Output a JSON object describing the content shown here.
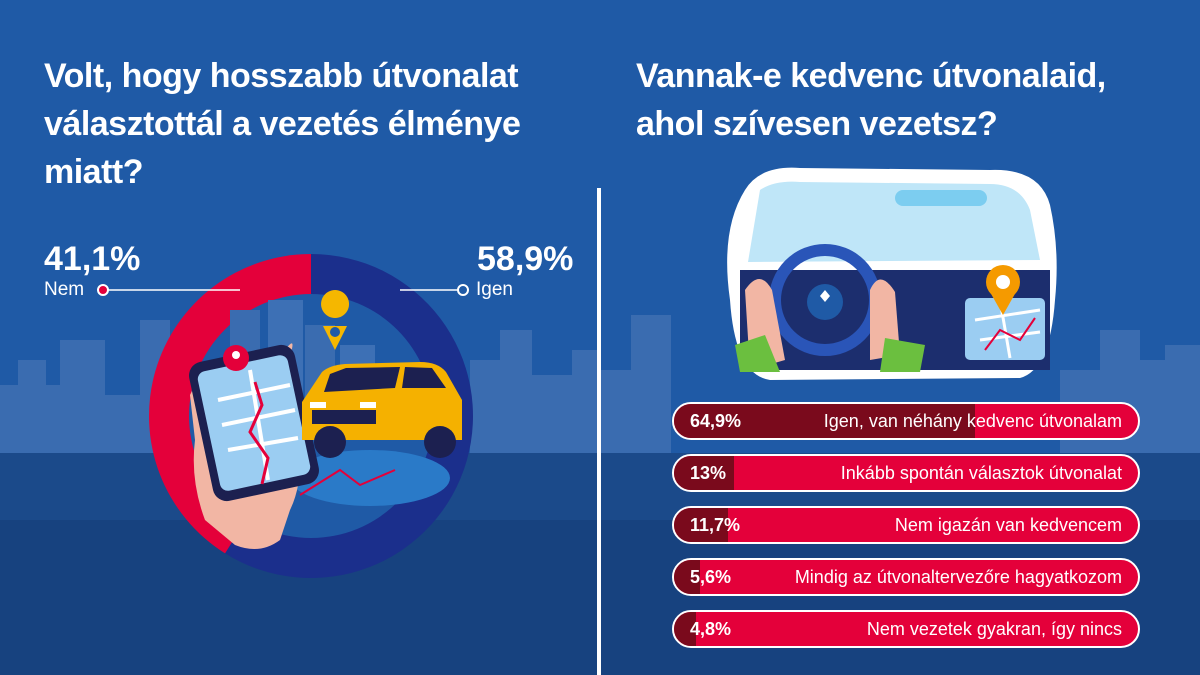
{
  "left": {
    "question": "Volt, hogy hosszabb útvonalat választottál a vezetés élménye miatt?"
  },
  "right": {
    "question": "Vannak-e kedvenc útvonalaid, ahol szívesen vezetsz?"
  },
  "colors": {
    "background": "#1f5aa6",
    "nem": "#e4003a",
    "igen": "#1b2f8c",
    "bar_fill": "#7a0a1c"
  },
  "icons": [
    "city-skyline",
    "smartphone-map-icon",
    "location-pin-icon",
    "yellow-suv-car",
    "steering-wheel-icon",
    "dashboard-navigation-icon"
  ],
  "chart_data": [
    {
      "type": "pie",
      "slices": [
        {
          "name": "Nem",
          "value": 41.1,
          "label": "41,1%"
        },
        {
          "name": "Igen",
          "value": 58.9,
          "label": "58,9%"
        }
      ]
    },
    {
      "type": "bar",
      "orientation": "horizontal",
      "categories": [
        "Igen, van néhány kedvenc útvonalam",
        "Inkább spontán választok útvonalat",
        "Nem igazán van kedvencem",
        "Mindig az útvonaltervezőre hagyatkozom",
        "Nem vezetek gyakran, így nincs"
      ],
      "values": [
        64.9,
        13,
        11.7,
        5.6,
        4.8
      ],
      "value_labels": [
        "64,9%",
        "13%",
        "11,7%",
        "5,6%",
        "4,8%"
      ],
      "xlim": [
        0,
        100
      ]
    }
  ]
}
